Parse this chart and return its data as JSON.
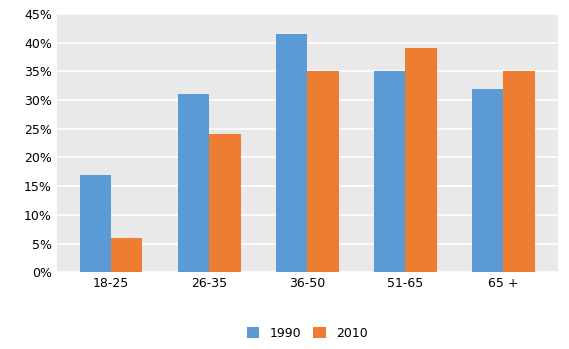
{
  "categories": [
    "18-25",
    "26-35",
    "36-50",
    "51-65",
    "65 +"
  ],
  "values_1990": [
    0.17,
    0.31,
    0.415,
    0.35,
    0.32
  ],
  "values_2010": [
    0.06,
    0.24,
    0.35,
    0.39,
    0.35
  ],
  "color_1990": "#5B9BD5",
  "color_2010": "#ED7D31",
  "legend_labels": [
    "1990",
    "2010"
  ],
  "ylim": [
    0,
    0.45
  ],
  "yticks": [
    0.0,
    0.05,
    0.1,
    0.15,
    0.2,
    0.25,
    0.3,
    0.35,
    0.4,
    0.45
  ],
  "plot_bg_color": "#E9E9E9",
  "fig_bg_color": "#FFFFFF",
  "grid_color": "#FFFFFF",
  "bar_width": 0.32,
  "tick_fontsize": 9,
  "legend_fontsize": 9
}
